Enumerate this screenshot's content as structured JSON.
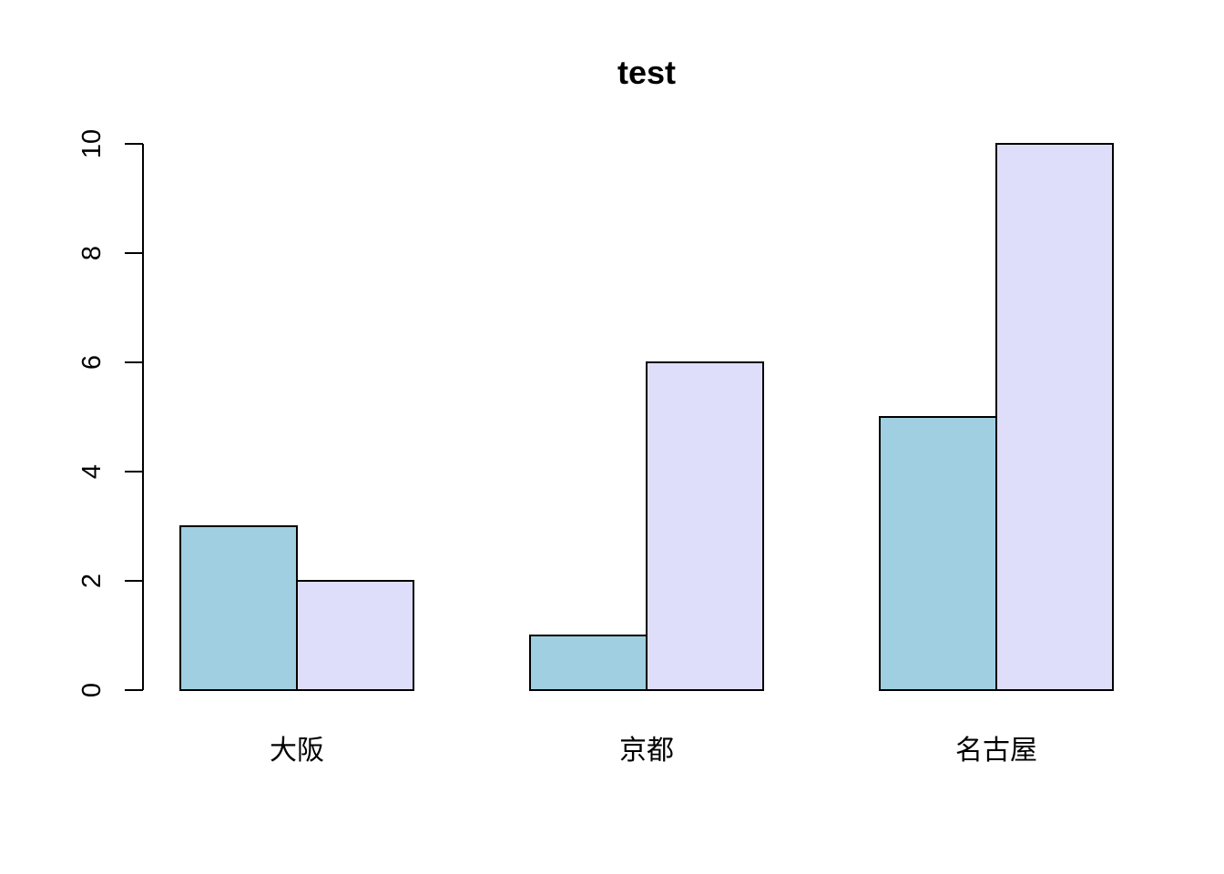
{
  "chart_data": {
    "type": "bar",
    "title": "test",
    "xlabel": "",
    "ylabel": "",
    "categories": [
      "大阪",
      "京都",
      "名古屋"
    ],
    "series": [
      {
        "color": "#9fcfe0",
        "values": [
          3,
          1,
          5
        ]
      },
      {
        "color": "#dedefa",
        "values": [
          2,
          6,
          10
        ]
      }
    ],
    "ylim": [
      0,
      10
    ],
    "yticks": [
      0,
      2,
      4,
      6,
      8,
      10
    ],
    "grid": false,
    "legend": "none"
  }
}
